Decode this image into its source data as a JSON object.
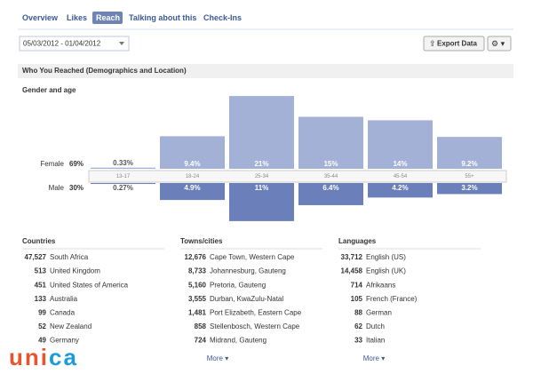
{
  "tabs": [
    "Overview",
    "Likes",
    "Reach",
    "Talking about this",
    "Check-Ins"
  ],
  "active_tab": 2,
  "date_range": "05/03/2012 - 01/04/2012",
  "export_button": "Export Data",
  "section_title": "Who You Reached (Demographics and Location)",
  "gender_age": {
    "title": "Gender and age",
    "female": {
      "label": "Female",
      "total": "69%"
    },
    "male": {
      "label": "Male",
      "total": "30%"
    },
    "age_groups": [
      "13-17",
      "18-24",
      "25-34",
      "35-44",
      "45-54",
      "55+"
    ],
    "female_values": [
      0.33,
      9.4,
      21,
      15,
      14,
      9.2
    ],
    "female_value_labels": [
      "0.33%",
      "9.4%",
      "21%",
      "15%",
      "14%",
      "9.2%"
    ],
    "male_values": [
      0.27,
      4.9,
      11,
      6.4,
      4.2,
      3.2
    ],
    "male_value_labels": [
      "0.27%",
      "4.9%",
      "11%",
      "6.4%",
      "4.2%",
      "3.2%"
    ],
    "female_color": "#a3b1d6",
    "male_color": "#6b7fba"
  },
  "lists": [
    {
      "title": "Countries",
      "rows": [
        [
          "47,527",
          "South Africa"
        ],
        [
          "513",
          "United Kingdom"
        ],
        [
          "451",
          "United States of America"
        ],
        [
          "133",
          "Australia"
        ],
        [
          "99",
          "Canada"
        ],
        [
          "52",
          "New Zealand"
        ],
        [
          "49",
          "Germany"
        ]
      ]
    },
    {
      "title": "Towns/cities",
      "rows": [
        [
          "12,676",
          "Cape Town, Western Cape"
        ],
        [
          "8,733",
          "Johannesburg, Gauteng"
        ],
        [
          "5,160",
          "Pretoria, Gauteng"
        ],
        [
          "3,555",
          "Durban, KwaZulu-Natal"
        ],
        [
          "1,481",
          "Port Elizabeth, Eastern Cape"
        ],
        [
          "858",
          "Stellenbosch, Western Cape"
        ],
        [
          "724",
          "Midrand, Gauteng"
        ]
      ],
      "more": "More ▾"
    },
    {
      "title": "Languages",
      "rows": [
        [
          "33,712",
          "English (US)"
        ],
        [
          "14,458",
          "English (UK)"
        ],
        [
          "714",
          "Afrikaans"
        ],
        [
          "105",
          "French (France)"
        ],
        [
          "88",
          "German"
        ],
        [
          "62",
          "Dutch"
        ],
        [
          "33",
          "Italian"
        ]
      ],
      "more": "More ▾"
    }
  ],
  "logo": "unica"
}
